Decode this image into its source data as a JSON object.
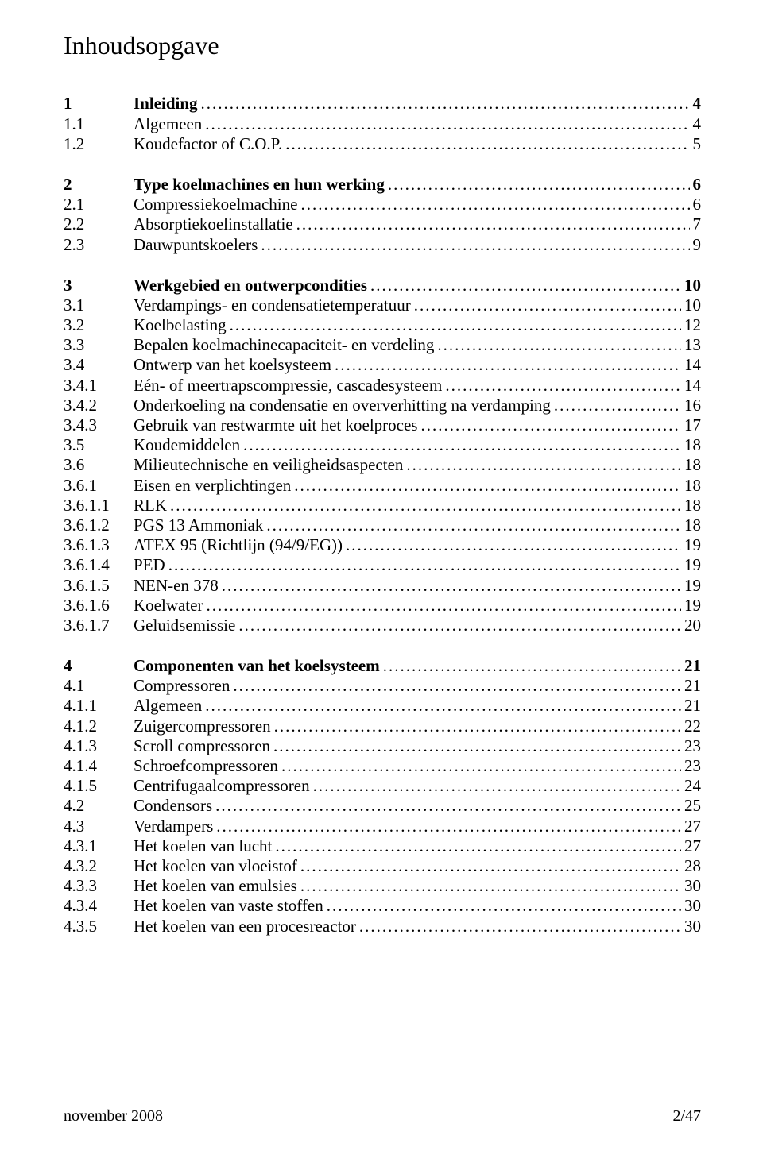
{
  "title": "Inhoudsopgave",
  "blocks": [
    [
      {
        "num": "1",
        "text": "Inleiding",
        "page": "4",
        "bold": true
      },
      {
        "num": "1.1",
        "text": "Algemeen",
        "page": "4",
        "bold": false
      },
      {
        "num": "1.2",
        "text": "Koudefactor of C.O.P.",
        "page": "5",
        "bold": false
      }
    ],
    [
      {
        "num": "2",
        "text": "Type koelmachines en hun werking",
        "page": "6",
        "bold": true
      },
      {
        "num": "2.1",
        "text": "Compressiekoelmachine",
        "page": "6",
        "bold": false
      },
      {
        "num": "2.2",
        "text": "Absorptiekoelinstallatie",
        "page": "7",
        "bold": false
      },
      {
        "num": "2.3",
        "text": "Dauwpuntskoelers",
        "page": "9",
        "bold": false
      }
    ],
    [
      {
        "num": "3",
        "text": "Werkgebied en ontwerpcondities",
        "page": "10",
        "bold": true
      },
      {
        "num": "3.1",
        "text": "Verdampings- en condensatietemperatuur",
        "page": "10",
        "bold": false
      },
      {
        "num": "3.2",
        "text": "Koelbelasting",
        "page": "12",
        "bold": false
      },
      {
        "num": "3.3",
        "text": "Bepalen koelmachinecapaciteit- en verdeling",
        "page": "13",
        "bold": false
      },
      {
        "num": "3.4",
        "text": "Ontwerp van het koelsysteem",
        "page": "14",
        "bold": false
      },
      {
        "num": "3.4.1",
        "text": "Eén- of meertrapscompressie, cascadesysteem",
        "page": "14",
        "bold": false
      },
      {
        "num": "3.4.2",
        "text": "Onderkoeling na condensatie en oververhitting na verdamping",
        "page": "16",
        "bold": false
      },
      {
        "num": "3.4.3",
        "text": "Gebruik van restwarmte uit het koelproces",
        "page": "17",
        "bold": false
      },
      {
        "num": "3.5",
        "text": "Koudemiddelen",
        "page": "18",
        "bold": false
      },
      {
        "num": "3.6",
        "text": "Milieutechnische en veiligheidsaspecten",
        "page": "18",
        "bold": false
      },
      {
        "num": "3.6.1",
        "text": "Eisen en verplichtingen",
        "page": "18",
        "bold": false
      },
      {
        "num": "3.6.1.1",
        "text": "RLK",
        "page": "18",
        "bold": false
      },
      {
        "num": "3.6.1.2",
        "text": "PGS 13 Ammoniak",
        "page": "18",
        "bold": false
      },
      {
        "num": "3.6.1.3",
        "text": "ATEX 95 (Richtlijn (94/9/EG))",
        "page": "19",
        "bold": false
      },
      {
        "num": "3.6.1.4",
        "text": "PED",
        "page": "19",
        "bold": false
      },
      {
        "num": "3.6.1.5",
        "text": "NEN-en 378",
        "page": "19",
        "bold": false
      },
      {
        "num": "3.6.1.6",
        "text": "Koelwater",
        "page": "19",
        "bold": false
      },
      {
        "num": "3.6.1.7",
        "text": "Geluidsemissie",
        "page": "20",
        "bold": false
      }
    ],
    [
      {
        "num": "4",
        "text": "Componenten van het koelsysteem",
        "page": "21",
        "bold": true
      },
      {
        "num": "4.1",
        "text": "Compressoren",
        "page": "21",
        "bold": false
      },
      {
        "num": "4.1.1",
        "text": "Algemeen",
        "page": "21",
        "bold": false
      },
      {
        "num": "4.1.2",
        "text": "Zuigercompressoren",
        "page": "22",
        "bold": false
      },
      {
        "num": "4.1.3",
        "text": "Scroll compressoren",
        "page": "23",
        "bold": false
      },
      {
        "num": "4.1.4",
        "text": "Schroefcompressoren",
        "page": "23",
        "bold": false
      },
      {
        "num": "4.1.5",
        "text": "Centrifugaalcompressoren",
        "page": "24",
        "bold": false
      },
      {
        "num": "4.2",
        "text": "Condensors",
        "page": "25",
        "bold": false
      },
      {
        "num": "4.3",
        "text": "Verdampers",
        "page": "27",
        "bold": false
      },
      {
        "num": "4.3.1",
        "text": "Het koelen van lucht",
        "page": "27",
        "bold": false
      },
      {
        "num": "4.3.2",
        "text": "Het koelen van vloeistof",
        "page": "28",
        "bold": false
      },
      {
        "num": "4.3.3",
        "text": "Het koelen van emulsies",
        "page": "30",
        "bold": false
      },
      {
        "num": "4.3.4",
        "text": "Het koelen van vaste stoffen",
        "page": "30",
        "bold": false
      },
      {
        "num": "4.3.5",
        "text": "Het koelen van een procesreactor",
        "page": "30",
        "bold": false
      }
    ]
  ],
  "footer": {
    "left": "november 2008",
    "right": "2/47"
  }
}
